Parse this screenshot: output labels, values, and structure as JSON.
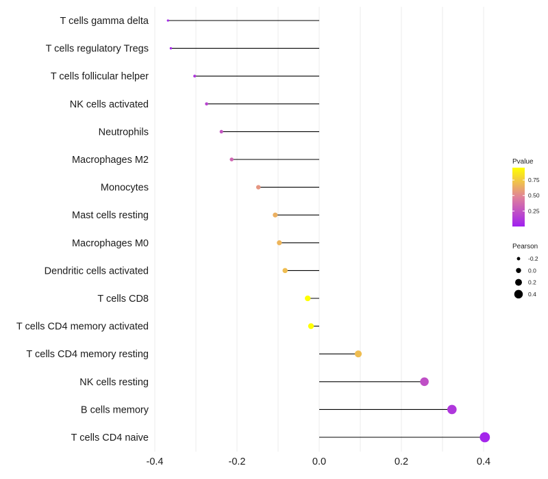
{
  "chart_data": {
    "type": "lollipop",
    "title": "",
    "xlabel": "",
    "ylabel": "",
    "xlim": [
      -0.4,
      0.4
    ],
    "x_ticks": [
      -0.4,
      -0.2,
      0.0,
      0.2,
      0.4
    ],
    "x_tick_labels": [
      "-0.4",
      "-0.2",
      "0.0",
      "0.2",
      "0.4"
    ],
    "grid": true,
    "categories": [
      "T cells gamma delta",
      "T cells regulatory  Tregs",
      "T cells follicular helper",
      "NK cells activated",
      "Neutrophils",
      "Macrophages M2",
      "Monocytes",
      "Mast cells resting",
      "Macrophages M0",
      "Dendritic cells activated",
      "T cells CD8",
      "T cells CD4 memory activated",
      "T cells CD4 memory resting",
      "NK cells resting",
      "B cells memory",
      "T cells CD4 naive"
    ],
    "values": [
      -0.368,
      -0.361,
      -0.303,
      -0.274,
      -0.238,
      -0.213,
      -0.148,
      -0.107,
      -0.097,
      -0.083,
      -0.028,
      -0.02,
      0.095,
      0.256,
      0.323,
      0.403
    ],
    "pvalues": [
      0.03,
      0.04,
      0.11,
      0.18,
      0.26,
      0.34,
      0.55,
      0.65,
      0.67,
      0.7,
      0.95,
      0.96,
      0.7,
      0.23,
      0.11,
      0.03
    ],
    "size_variable": "Pearson",
    "color_variable": "Pvalue",
    "legends": {
      "color": {
        "title": "Pvalue",
        "ticks": [
          0.25,
          0.5,
          0.75
        ],
        "tick_labels": [
          "0.25",
          "0.50",
          "0.75"
        ],
        "range": [
          0.0,
          0.95
        ],
        "colors": {
          "low": "#a020f0",
          "mid": "#e0829a",
          "high": "#ffff00"
        }
      },
      "size": {
        "title": "Pearson",
        "values": [
          -0.2,
          0.0,
          0.2,
          0.4
        ],
        "labels": [
          "-0.2",
          "0.0",
          "0.2",
          "0.4"
        ],
        "swatch_color": "#000000"
      }
    }
  }
}
